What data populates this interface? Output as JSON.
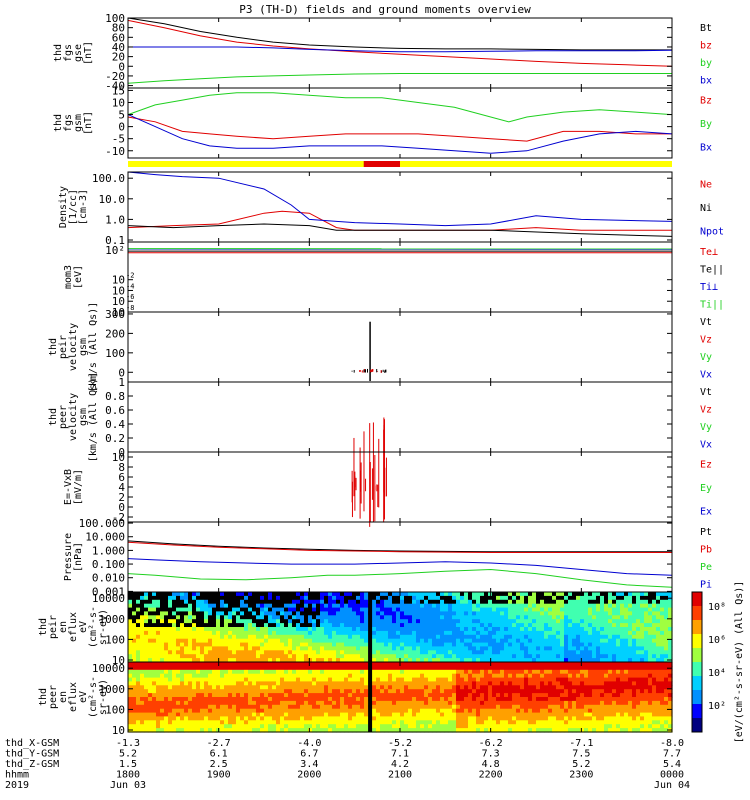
{
  "title": "P3 (TH-D) fields and ground moments overview",
  "colors": {
    "black": "#000000",
    "red": "#e00000",
    "green": "#20d020",
    "blue": "#0000d0",
    "yellow": "#ffff00"
  },
  "chart_data": {
    "type": "line",
    "x_range_hours": [
      18.0,
      24.0
    ],
    "panels": [
      {
        "id": "fgs_gse",
        "ylabel": [
          "thd",
          "fgs",
          "gse",
          "[nT]"
        ],
        "ylim": [
          -45,
          100
        ],
        "yticks": [
          -40,
          -20,
          0,
          20,
          40,
          60,
          80,
          100
        ],
        "series": [
          {
            "name": "Bt",
            "color": "black",
            "x": [
              18.0,
              18.4,
              18.8,
              19.2,
              19.6,
              20.0,
              20.5,
              21.0,
              21.5,
              22.0,
              22.5,
              23.0,
              23.5,
              24.0
            ],
            "values": [
              100,
              88,
              72,
              60,
              50,
              44,
              40,
              37,
              36,
              36,
              35,
              34,
              34,
              34
            ]
          },
          {
            "name": "bz",
            "color": "red",
            "x": [
              18.0,
              18.4,
              18.8,
              19.2,
              19.6,
              20.0,
              20.5,
              21.0,
              21.5,
              22.0,
              22.5,
              23.0,
              23.5,
              24.0
            ],
            "values": [
              95,
              80,
              63,
              50,
              42,
              36,
              30,
              25,
              20,
              15,
              10,
              6,
              3,
              0
            ]
          },
          {
            "name": "by",
            "color": "green",
            "x": [
              18.0,
              18.4,
              18.8,
              19.2,
              19.6,
              20.0,
              20.5,
              21.0,
              21.5,
              22.0,
              22.5,
              23.0,
              23.5,
              24.0
            ],
            "values": [
              -35,
              -30,
              -26,
              -22,
              -20,
              -18,
              -16,
              -15,
              -15,
              -15,
              -15,
              -15,
              -15,
              -15
            ]
          },
          {
            "name": "bx",
            "color": "blue",
            "x": [
              18.0,
              18.4,
              18.8,
              19.2,
              19.6,
              20.0,
              20.5,
              21.0,
              21.5,
              22.0,
              22.5,
              23.0,
              23.5,
              24.0
            ],
            "values": [
              40,
              40,
              40,
              40,
              38,
              35,
              32,
              30,
              30,
              31,
              32,
              32,
              32,
              33
            ]
          }
        ]
      },
      {
        "id": "fgs_gsm",
        "ylabel": [
          "thd",
          "fgs",
          "gsm",
          "[nT]"
        ],
        "ylim": [
          -13,
          16
        ],
        "yticks": [
          -10,
          -5,
          0,
          5,
          10,
          15
        ],
        "series": [
          {
            "name": "Bz",
            "color": "red",
            "x": [
              18.0,
              18.3,
              18.6,
              18.9,
              19.2,
              19.6,
              20.0,
              20.4,
              20.8,
              21.2,
              21.6,
              22.0,
              22.4,
              22.8,
              23.2,
              23.6,
              24.0
            ],
            "values": [
              4,
              2,
              -2,
              -3,
              -4,
              -5,
              -4,
              -3,
              -3,
              -3,
              -4,
              -5,
              -6,
              -2,
              -2,
              -3,
              -3
            ]
          },
          {
            "name": "By",
            "color": "green",
            "x": [
              18.0,
              18.3,
              18.6,
              18.9,
              19.2,
              19.6,
              20.0,
              20.4,
              20.8,
              21.2,
              21.6,
              22.0,
              22.2,
              22.4,
              22.8,
              23.2,
              23.6,
              24.0
            ],
            "values": [
              5,
              9,
              11,
              13,
              14,
              14,
              13,
              12,
              12,
              10,
              8,
              4,
              2,
              4,
              6,
              7,
              6,
              5
            ]
          },
          {
            "name": "Bx",
            "color": "blue",
            "x": [
              18.0,
              18.3,
              18.6,
              18.9,
              19.2,
              19.6,
              20.0,
              20.4,
              20.8,
              21.2,
              21.6,
              22.0,
              22.4,
              22.8,
              23.2,
              23.6,
              24.0
            ],
            "values": [
              5,
              0,
              -5,
              -8,
              -9,
              -9,
              -8,
              -8,
              -8,
              -9,
              -10,
              -11,
              -10,
              -6,
              -3,
              -2,
              -3
            ]
          }
        ]
      },
      {
        "id": "density",
        "ylabel": [
          "Density",
          "[1/cc]",
          "[cm-3]"
        ],
        "log": true,
        "ylim": [
          0.08,
          200
        ],
        "yticks": [
          0.1,
          1.0,
          10.0,
          100.0
        ],
        "ytick_labels": [
          "0.1",
          "1.0",
          "10.0",
          "100.0"
        ],
        "series": [
          {
            "name": "Ne",
            "color": "red",
            "x": [
              18.0,
              18.5,
              19.0,
              19.5,
              19.7,
              20.0,
              20.3,
              20.5,
              21.0,
              22.0,
              22.5,
              23.0,
              24.0
            ],
            "values": [
              0.4,
              0.5,
              0.6,
              2.0,
              2.5,
              2.0,
              0.4,
              0.3,
              0.3,
              0.3,
              0.4,
              0.3,
              0.3
            ]
          },
          {
            "name": "Ni",
            "color": "black",
            "x": [
              18.0,
              18.5,
              19.0,
              19.5,
              20.0,
              20.3,
              20.5,
              21.0,
              22.0,
              23.0,
              24.0
            ],
            "values": [
              0.5,
              0.4,
              0.5,
              0.6,
              0.5,
              0.3,
              0.3,
              0.3,
              0.3,
              0.2,
              0.15
            ]
          },
          {
            "name": "Npot",
            "color": "blue",
            "x": [
              18.0,
              18.3,
              18.6,
              19.0,
              19.5,
              19.8,
              20.0,
              20.3,
              20.5,
              21.0,
              21.5,
              22.0,
              22.5,
              23.0,
              24.0
            ],
            "values": [
              200,
              150,
              120,
              100,
              30,
              5,
              1.0,
              0.8,
              0.7,
              0.6,
              0.5,
              0.6,
              1.5,
              1.0,
              0.8
            ]
          }
        ]
      },
      {
        "id": "temperature",
        "ylabel": [
          "mom3",
          "[eV]"
        ],
        "log": true,
        "ylim": [
          1e-08,
          100000.0
        ],
        "yticks": [
          0.01,
          0.0001,
          1e-06,
          1e-08
        ],
        "ytick_labels": [
          "10",
          "10",
          "10",
          "10"
        ],
        "tick_exponents": [
          "-2",
          "-4",
          "-6",
          "-8"
        ],
        "top_tick_label": "10²",
        "series": [
          {
            "name": "Te⊥",
            "color": "red",
            "x": [
              18.0,
              24.0
            ],
            "values": [
              1000,
              1000
            ]
          },
          {
            "name": "Te||",
            "color": "black",
            "x": [
              18.0,
              24.0
            ],
            "values": [
              2000,
              2000
            ]
          },
          {
            "name": "Ti⊥",
            "color": "blue",
            "x": [
              18.0,
              24.0
            ],
            "values": [
              5000,
              4500
            ]
          },
          {
            "name": "Ti||",
            "color": "green",
            "x": [
              18.0,
              24.0
            ],
            "values": [
              6000,
              5500
            ]
          }
        ]
      },
      {
        "id": "ion_velocity",
        "ylabel": [
          "thd",
          "peir",
          "velocity",
          "gsm",
          "[km/s (All Qs)]"
        ],
        "ylim": [
          -50,
          310
        ],
        "yticks": [
          0,
          100,
          200,
          300
        ],
        "labels": [
          "Vt",
          "Vz",
          "Vy",
          "Vx"
        ],
        "spike": {
          "x": 20.67,
          "value": 260,
          "unit": "km/s"
        }
      },
      {
        "id": "electron_velocity",
        "ylabel": [
          "thd",
          "peer",
          "velocity",
          "gsm",
          "[km/s (All Qs)]"
        ],
        "ylim": [
          0.0,
          1.0
        ],
        "yticks": [
          0.0,
          0.2,
          0.4,
          0.6,
          0.8,
          1.0
        ],
        "labels": [
          "Vt",
          "Vz",
          "Vy",
          "Vx"
        ]
      },
      {
        "id": "efield",
        "ylabel": [
          "E=-VxB",
          "[mV/m]"
        ],
        "ylim": [
          -3,
          11
        ],
        "yticks": [
          -2,
          0,
          2,
          4,
          6,
          8,
          10
        ],
        "labels": [
          "Ez",
          "Ey",
          "Ex"
        ],
        "spike": {
          "x": 20.67,
          "value": 9,
          "unit": "mV/m"
        }
      },
      {
        "id": "pressure",
        "ylabel": [
          "Pressure",
          "[nPa]"
        ],
        "log": true,
        "ylim": [
          0.0009,
          120
        ],
        "yticks": [
          0.001,
          0.01,
          0.1,
          1,
          10,
          100
        ],
        "ytick_labels": [
          "0.001",
          "0.010",
          "0.100",
          "1.000",
          "10.000",
          "100.000"
        ],
        "series": [
          {
            "name": "Pt",
            "color": "black",
            "x": [
              18.0,
              18.5,
              19.0,
              19.5,
              20.0,
              20.5,
              21.0,
              22.0,
              23.0,
              24.0
            ],
            "values": [
              5.0,
              3.0,
              2.0,
              1.5,
              1.2,
              1.0,
              0.9,
              0.8,
              0.8,
              0.8
            ]
          },
          {
            "name": "Pb",
            "color": "red",
            "x": [
              18.0,
              18.5,
              19.0,
              19.5,
              20.0,
              20.5,
              21.0,
              22.0,
              23.0,
              24.0
            ],
            "values": [
              4.0,
              2.5,
              1.7,
              1.3,
              1.0,
              0.9,
              0.8,
              0.7,
              0.7,
              0.7
            ]
          },
          {
            "name": "Pe",
            "color": "green",
            "x": [
              18.0,
              18.3,
              18.8,
              19.3,
              19.8,
              20.2,
              20.5,
              21.0,
              21.5,
              22.0,
              22.5,
              23.0,
              23.5,
              24.0
            ],
            "values": [
              0.02,
              0.015,
              0.008,
              0.007,
              0.01,
              0.015,
              0.015,
              0.02,
              0.03,
              0.04,
              0.02,
              0.007,
              0.003,
              0.002
            ]
          },
          {
            "name": "Pi",
            "color": "blue",
            "x": [
              18.0,
              18.3,
              18.8,
              19.3,
              19.8,
              20.2,
              20.5,
              21.0,
              21.5,
              22.0,
              22.5,
              23.0,
              23.5,
              24.0
            ],
            "values": [
              0.25,
              0.2,
              0.15,
              0.12,
              0.1,
              0.1,
              0.1,
              0.12,
              0.15,
              0.12,
              0.08,
              0.04,
              0.02,
              0.015
            ]
          }
        ]
      },
      {
        "id": "ion_spectrogram",
        "type": "heatmap",
        "ylabel": [
          "thd",
          "peir",
          "en",
          "eflux",
          "eV",
          "(cm²-s-",
          "sr-eV)"
        ],
        "log": true,
        "ylim": [
          8,
          20000
        ],
        "yticks": [
          10,
          100,
          1000,
          10000
        ],
        "ytick_labels": [
          "10",
          "100",
          "1000",
          "10000"
        ]
      },
      {
        "id": "electron_spectrogram",
        "type": "heatmap",
        "ylabel": [
          "thd",
          "peer",
          "en",
          "eflux",
          "eV",
          "(cm²-s-",
          "sr-eV)"
        ],
        "log": true,
        "ylim": [
          8,
          20000
        ],
        "yticks": [
          10,
          100,
          1000,
          10000
        ],
        "ytick_labels": [
          "10",
          "100",
          "1000",
          "10000"
        ]
      }
    ],
    "colorbar": {
      "label": "[eV/(cm²-s-sr-eV) (All Qs)]",
      "ticks": [
        "10⁸",
        "10⁶",
        "10⁴",
        "10²"
      ]
    },
    "x_axis": {
      "row_labels": [
        "thd_X-GSM",
        "thd_Y-GSM",
        "thd_Z-GSM",
        "hhmm",
        "2019"
      ],
      "ticks": [
        {
          "x": 18.0,
          "vals": [
            "-1.3",
            "5.2",
            "1.5",
            "1800",
            "Jun 03"
          ]
        },
        {
          "x": 19.0,
          "vals": [
            "-2.7",
            "6.1",
            "2.5",
            "1900",
            ""
          ]
        },
        {
          "x": 20.0,
          "vals": [
            "-4.0",
            "6.7",
            "3.4",
            "2000",
            ""
          ]
        },
        {
          "x": 21.0,
          "vals": [
            "-5.2",
            "7.1",
            "4.2",
            "2100",
            ""
          ]
        },
        {
          "x": 22.0,
          "vals": [
            "-6.2",
            "7.3",
            "4.8",
            "2200",
            ""
          ]
        },
        {
          "x": 23.0,
          "vals": [
            "-7.1",
            "7.5",
            "5.2",
            "2300",
            ""
          ]
        },
        {
          "x": 24.0,
          "vals": [
            "-8.0",
            "7.7",
            "5.4",
            "0000",
            "Jun 04"
          ]
        }
      ]
    },
    "status_bar": {
      "colors": [
        "yellow",
        "red"
      ],
      "red_span_hours": [
        20.6,
        21.0
      ]
    }
  }
}
